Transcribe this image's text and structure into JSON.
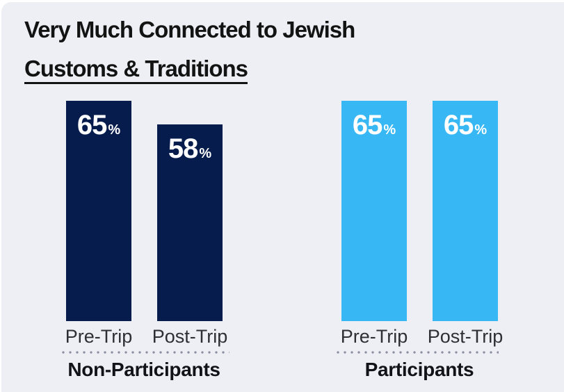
{
  "title": {
    "line1": "Very Much Connected to Jewish",
    "line2": "Customs & Traditions"
  },
  "colors": {
    "page": "#ffffff",
    "background": "#eeeff4",
    "navy": "#051c4d",
    "light_blue": "#37b7f4",
    "title_text": "#131313",
    "tick_label": "#2e2f35",
    "group_label": "#121318",
    "value_text": "#ffffff",
    "dots": "#8a90a2"
  },
  "chart_data": {
    "type": "bar",
    "title": "Very Much Connected to Jewish Customs & Traditions",
    "unit": "%",
    "ylim": [
      0,
      65
    ],
    "legend_position": "none",
    "grid": false,
    "groups": [
      {
        "label": "Non-Participants",
        "color": "#051c4d",
        "bars": [
          {
            "label": "Pre-Trip",
            "value": 65
          },
          {
            "label": "Post-Trip",
            "value": 58
          }
        ]
      },
      {
        "label": "Participants",
        "color": "#37b7f4",
        "bars": [
          {
            "label": "Pre-Trip",
            "value": 65
          },
          {
            "label": "Post-Trip",
            "value": 65
          }
        ]
      }
    ]
  }
}
